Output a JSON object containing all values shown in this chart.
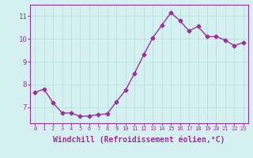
{
  "x": [
    0,
    1,
    2,
    3,
    4,
    5,
    6,
    7,
    8,
    9,
    10,
    11,
    12,
    13,
    14,
    15,
    16,
    17,
    18,
    19,
    20,
    21,
    22,
    23
  ],
  "y": [
    7.65,
    7.8,
    7.2,
    6.75,
    6.75,
    6.6,
    6.62,
    6.68,
    6.72,
    7.25,
    7.75,
    8.5,
    9.3,
    10.05,
    10.6,
    11.15,
    10.8,
    10.35,
    10.55,
    10.1,
    10.1,
    9.95,
    9.7,
    9.85
  ],
  "line_color": "#993399",
  "marker": "D",
  "markersize": 2.5,
  "linewidth": 1.0,
  "xlabel": "Windchill (Refroidissement éolien,°C)",
  "xlabel_fontsize": 7,
  "ytick_labels": [
    "7",
    "8",
    "9",
    "10",
    "11"
  ],
  "yticks": [
    7,
    8,
    9,
    10,
    11
  ],
  "ylim": [
    6.3,
    11.5
  ],
  "xlim": [
    -0.5,
    23.5
  ],
  "bg_color": "#d4f0f0",
  "grid_color": "#b8e0e0",
  "tick_color": "#993399",
  "label_color": "#993399",
  "spine_color": "#993399",
  "xtick_fontsize": 5.0,
  "ytick_fontsize": 6.5
}
